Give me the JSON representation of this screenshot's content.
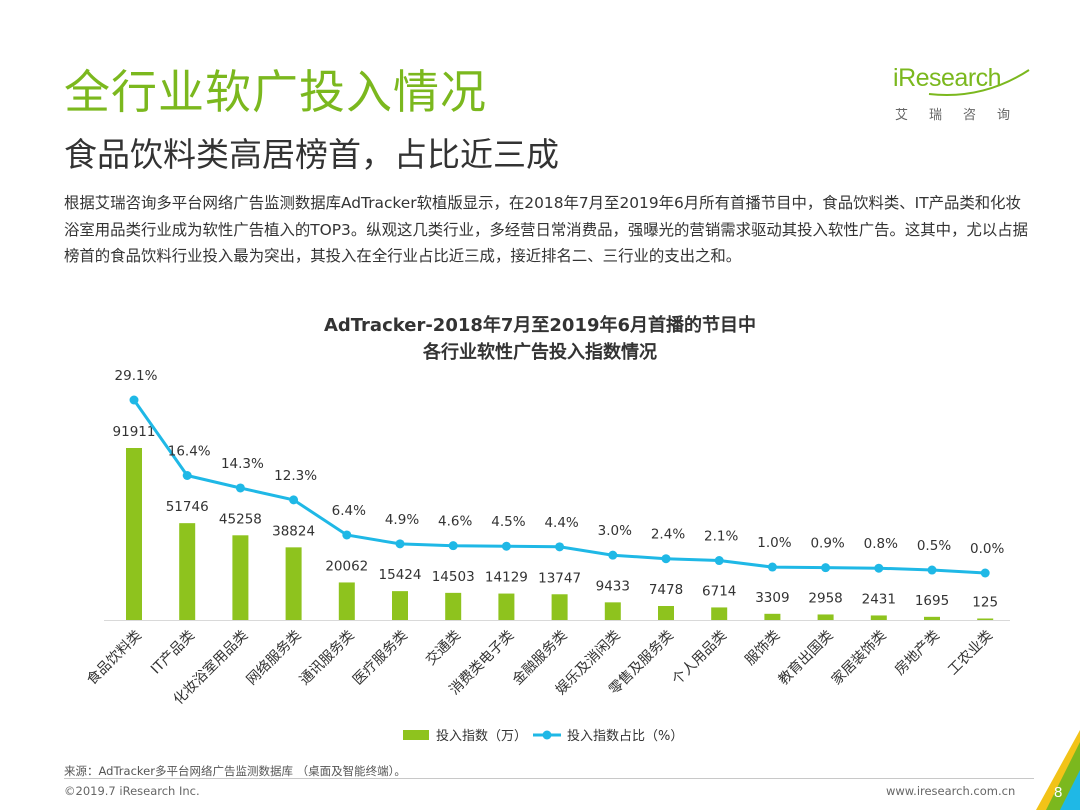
{
  "header": {
    "title": "全行业软广投入情况",
    "subtitle": "食品饮料类高居榜首，占比近三成",
    "intro": "根据艾瑞咨询多平台网络广告监测数据库AdTracker软植版显示，在2018年7月至2019年6月所有首播节目中，食品饮料类、IT产品类和化妆浴室用品类行业成为软性广告植入的TOP3。纵观这几类行业，多经营日常消费品，强曝光的营销需求驱动其投入软性广告。这其中，尤以占据榜首的食品饮料行业投入最为突出，其投入在全行业占比近三成，接近排名二、三行业的支出之和。"
  },
  "logo": {
    "word_i": "i",
    "word_rest": "Research",
    "cn": "艾瑞咨询"
  },
  "colors": {
    "brand_green": "#7bb81e",
    "bar_green": "#8ec31e",
    "line_blue": "#1fb8e6",
    "accent_yellow": "#f2c318"
  },
  "chart_data": {
    "type": "bar+line",
    "title": "AdTracker-2018年7月至2019年6月首播的节目中",
    "subtitle": "各行业软性广告投入指数情况",
    "categories": [
      "食品饮料类",
      "IT产品类",
      "化妆浴室用品类",
      "网络服务类",
      "通讯服务类",
      "医疗服务类",
      "交通类",
      "消费类电子类",
      "金融服务类",
      "娱乐及消闲类",
      "零售及服务类",
      "个人用品类",
      "服饰类",
      "教育出国类",
      "家居装饰类",
      "房地产类",
      "工农业类"
    ],
    "series": [
      {
        "name": "投入指数（万）",
        "type": "bar",
        "values": [
          91911,
          51746,
          45258,
          38824,
          20062,
          15424,
          14503,
          14129,
          13747,
          9433,
          7478,
          6714,
          3309,
          2958,
          2431,
          1695,
          125
        ]
      },
      {
        "name": "投入指数占比（%）",
        "type": "line",
        "values": [
          29.1,
          16.4,
          14.3,
          12.3,
          6.4,
          4.9,
          4.6,
          4.5,
          4.4,
          3.0,
          2.4,
          2.1,
          1.0,
          0.9,
          0.8,
          0.5,
          0.0
        ],
        "labels": [
          "29.1%",
          "16.4%",
          "14.3%",
          "12.3%",
          "6.4%",
          "4.9%",
          "4.6%",
          "4.5%",
          "4.4%",
          "3.0%",
          "2.4%",
          "2.1%",
          "1.0%",
          "0.9%",
          "0.8%",
          "0.5%",
          "0.0%"
        ]
      }
    ],
    "legend": [
      "投入指数（万）",
      "投入指数占比（%）"
    ],
    "legend_position": "bottom"
  },
  "footer": {
    "source": "来源：AdTracker多平台网络广告监测数据库 （桌面及智能终端）。",
    "copyright": "©2019.7 iResearch Inc.",
    "website": "www.iresearch.com.cn",
    "page": "8"
  }
}
